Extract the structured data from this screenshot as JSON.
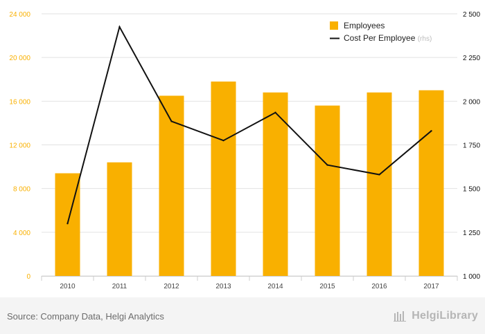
{
  "chart_data": {
    "type": "bar",
    "categories": [
      "2010",
      "2011",
      "2012",
      "2013",
      "2014",
      "2015",
      "2016",
      "2017"
    ],
    "series": [
      {
        "name": "Employees",
        "kind": "bar",
        "axis": "left",
        "color": "#f9b000",
        "values": [
          9400,
          10400,
          16500,
          17800,
          16800,
          15600,
          16800,
          17000
        ]
      },
      {
        "name": "Cost Per Employee",
        "name_suffix": "(rhs)",
        "kind": "line",
        "axis": "right",
        "color": "#111111",
        "values": [
          1300,
          2425,
          1885,
          1775,
          1935,
          1635,
          1580,
          1830
        ]
      }
    ],
    "left_axis": {
      "ylim": [
        0,
        24000
      ],
      "ticks": [
        "0",
        "4 000",
        "8 000",
        "12 000",
        "16 000",
        "20 000",
        "24 000"
      ],
      "tick_values": [
        0,
        4000,
        8000,
        12000,
        16000,
        20000,
        24000
      ],
      "color": "#f9b000"
    },
    "right_axis": {
      "ylim": [
        1000,
        2500
      ],
      "ticks": [
        "1 000",
        "1 250",
        "1 500",
        "1 750",
        "2 000",
        "2 250",
        "2 500"
      ],
      "tick_values": [
        1000,
        1250,
        1500,
        1750,
        2000,
        2250,
        2500
      ],
      "color": "#111111"
    },
    "grid": true,
    "legend": "top-right"
  },
  "footer": {
    "source": "Source: Company Data, Helgi Analytics",
    "brand": "HelgiLibrary"
  }
}
